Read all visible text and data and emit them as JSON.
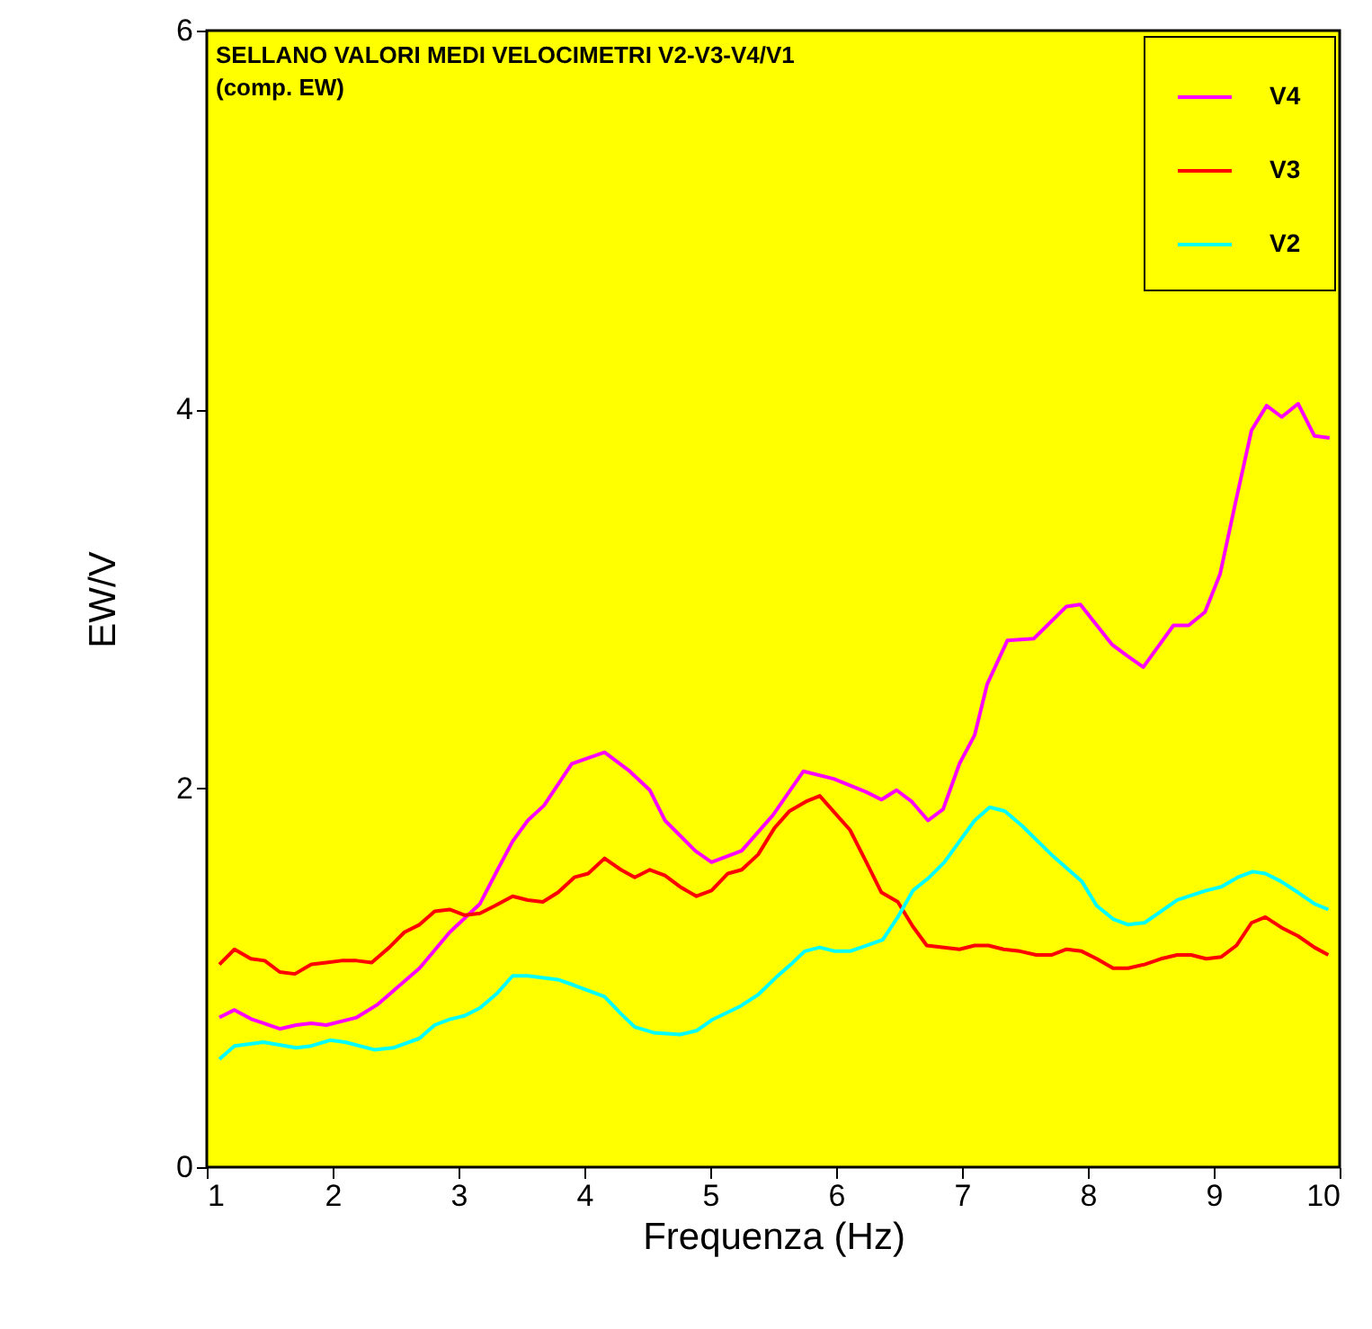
{
  "chart_data": {
    "type": "line",
    "title": "SELLANO VALORI MEDI VELOCIMETRI V2-V3-V4/V1",
    "subtitle": "(comp. EW)",
    "xlabel": "Frequenza (Hz)",
    "ylabel": "EW/V",
    "xlim": [
      1,
      10
    ],
    "ylim": [
      0,
      6
    ],
    "xticks": [
      1,
      2,
      3,
      4,
      5,
      6,
      7,
      8,
      9,
      10
    ],
    "yticks": [
      0,
      2,
      4,
      6
    ],
    "grid": false,
    "legend": "top right",
    "marker": "none",
    "line_style": "solid",
    "series": [
      {
        "name": "V4",
        "color": "#ff00ff",
        "x": [
          1.1,
          1.22,
          1.36,
          1.45,
          1.58,
          1.71,
          1.83,
          1.95,
          2.19,
          2.36,
          2.69,
          2.93,
          3.17,
          3.31,
          3.43,
          3.55,
          3.68,
          3.9,
          4.16,
          4.36,
          4.52,
          4.64,
          4.88,
          5.01,
          5.25,
          5.5,
          5.74,
          5.98,
          6.24,
          6.36,
          6.48,
          6.6,
          6.73,
          6.85,
          6.98,
          7.1,
          7.2,
          7.36,
          7.57,
          7.83,
          7.94,
          8.19,
          8.31,
          8.44,
          8.68,
          8.8,
          8.93,
          9.05,
          9.17,
          9.3,
          9.42,
          9.54,
          9.67,
          9.8,
          9.92
        ],
        "values": [
          0.79,
          0.83,
          0.78,
          0.76,
          0.73,
          0.75,
          0.76,
          0.75,
          0.79,
          0.86,
          1.05,
          1.24,
          1.39,
          1.57,
          1.72,
          1.83,
          1.91,
          2.13,
          2.19,
          2.09,
          1.99,
          1.83,
          1.67,
          1.61,
          1.67,
          1.86,
          2.09,
          2.05,
          1.98,
          1.94,
          1.99,
          1.93,
          1.83,
          1.89,
          2.13,
          2.28,
          2.55,
          2.78,
          2.79,
          2.96,
          2.97,
          2.76,
          2.7,
          2.64,
          2.86,
          2.86,
          2.93,
          3.13,
          3.5,
          3.89,
          4.02,
          3.96,
          4.03,
          3.86,
          3.85
        ]
      },
      {
        "name": "V3",
        "color": "#ff0000",
        "x": [
          1.1,
          1.22,
          1.35,
          1.46,
          1.58,
          1.7,
          1.83,
          1.95,
          2.07,
          2.19,
          2.31,
          2.45,
          2.57,
          2.69,
          2.81,
          2.93,
          3.05,
          3.17,
          3.29,
          3.43,
          3.55,
          3.67,
          3.79,
          3.92,
          4.03,
          4.16,
          4.29,
          4.4,
          4.52,
          4.64,
          4.76,
          4.89,
          5.01,
          5.14,
          5.25,
          5.38,
          5.51,
          5.63,
          5.76,
          5.87,
          5.99,
          6.11,
          6.24,
          6.36,
          6.49,
          6.61,
          6.72,
          6.98,
          7.1,
          7.21,
          7.33,
          7.46,
          7.59,
          7.71,
          7.83,
          7.95,
          8.07,
          8.2,
          8.32,
          8.45,
          8.58,
          8.71,
          8.82,
          8.94,
          9.06,
          9.18,
          9.3,
          9.41,
          9.55,
          9.67,
          9.8,
          9.91
        ],
        "values": [
          1.07,
          1.15,
          1.1,
          1.09,
          1.03,
          1.02,
          1.07,
          1.08,
          1.09,
          1.09,
          1.08,
          1.16,
          1.24,
          1.28,
          1.35,
          1.36,
          1.33,
          1.34,
          1.38,
          1.43,
          1.41,
          1.4,
          1.45,
          1.53,
          1.55,
          1.63,
          1.57,
          1.53,
          1.57,
          1.54,
          1.48,
          1.43,
          1.46,
          1.55,
          1.57,
          1.65,
          1.79,
          1.88,
          1.93,
          1.96,
          1.87,
          1.78,
          1.61,
          1.45,
          1.4,
          1.27,
          1.17,
          1.15,
          1.17,
          1.17,
          1.15,
          1.14,
          1.12,
          1.12,
          1.15,
          1.14,
          1.1,
          1.05,
          1.05,
          1.07,
          1.1,
          1.12,
          1.12,
          1.1,
          1.11,
          1.17,
          1.29,
          1.32,
          1.26,
          1.22,
          1.16,
          1.12
        ]
      },
      {
        "name": "V2",
        "color": "#00ffff",
        "x": [
          1.1,
          1.22,
          1.45,
          1.71,
          1.83,
          1.98,
          2.1,
          2.33,
          2.48,
          2.69,
          2.81,
          2.93,
          3.05,
          3.17,
          3.31,
          3.43,
          3.55,
          3.79,
          3.92,
          4.16,
          4.29,
          4.4,
          4.55,
          4.76,
          4.89,
          5.02,
          5.24,
          5.38,
          5.52,
          5.64,
          5.75,
          5.87,
          5.99,
          6.11,
          6.24,
          6.37,
          6.49,
          6.61,
          6.74,
          6.86,
          6.98,
          7.1,
          7.22,
          7.34,
          7.48,
          7.71,
          7.83,
          7.95,
          8.07,
          8.2,
          8.32,
          8.45,
          8.58,
          8.71,
          8.94,
          9.06,
          9.19,
          9.31,
          9.41,
          9.53,
          9.67,
          9.8,
          9.91
        ],
        "values": [
          0.57,
          0.64,
          0.66,
          0.63,
          0.64,
          0.67,
          0.66,
          0.62,
          0.63,
          0.68,
          0.75,
          0.78,
          0.8,
          0.84,
          0.92,
          1.01,
          1.01,
          0.99,
          0.96,
          0.9,
          0.81,
          0.74,
          0.71,
          0.7,
          0.72,
          0.78,
          0.85,
          0.91,
          1.0,
          1.07,
          1.14,
          1.16,
          1.14,
          1.14,
          1.17,
          1.2,
          1.32,
          1.46,
          1.53,
          1.61,
          1.72,
          1.83,
          1.9,
          1.88,
          1.8,
          1.65,
          1.58,
          1.51,
          1.38,
          1.31,
          1.28,
          1.29,
          1.35,
          1.41,
          1.46,
          1.48,
          1.53,
          1.56,
          1.55,
          1.51,
          1.45,
          1.39,
          1.36
        ]
      }
    ]
  }
}
